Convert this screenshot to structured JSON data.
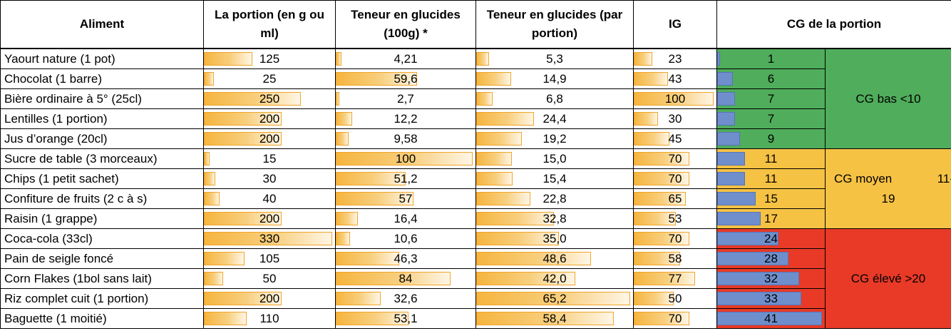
{
  "headers": {
    "aliment": "Aliment",
    "portion": "La portion (en g ou ml)",
    "teneur100": "Teneur en glucides (100g) *",
    "teneurPortion": "Teneur en glucides (par portion)",
    "ig": "IG",
    "cg": "CG de la portion"
  },
  "rows": [
    {
      "aliment": "Yaourt nature (1 pot)",
      "portion": "125",
      "portion_num": 125,
      "g100": "4,21",
      "g100_num": 4.21,
      "gpor": "5,3",
      "gpor_num": 5.3,
      "ig": "23",
      "ig_num": 23,
      "cg": "1",
      "cg_num": 1
    },
    {
      "aliment": "Chocolat (1 barre)",
      "portion": "25",
      "portion_num": 25,
      "g100": "59,6",
      "g100_num": 59.6,
      "gpor": "14,9",
      "gpor_num": 14.9,
      "ig": "43",
      "ig_num": 43,
      "cg": "6",
      "cg_num": 6
    },
    {
      "aliment": "Bière ordinaire à 5° (25cl)",
      "portion": "250",
      "portion_num": 250,
      "g100": "2,7",
      "g100_num": 2.7,
      "gpor": "6,8",
      "gpor_num": 6.8,
      "ig": "100",
      "ig_num": 100,
      "cg": "7",
      "cg_num": 7
    },
    {
      "aliment": "Lentilles (1 portion)",
      "portion": "200",
      "portion_num": 200,
      "g100": "12,2",
      "g100_num": 12.2,
      "gpor": "24,4",
      "gpor_num": 24.4,
      "ig": "30",
      "ig_num": 30,
      "cg": "7",
      "cg_num": 7
    },
    {
      "aliment": "Jus d’orange (20cl)",
      "portion": "200",
      "portion_num": 200,
      "g100": "9,58",
      "g100_num": 9.58,
      "gpor": "19,2",
      "gpor_num": 19.2,
      "ig": "45",
      "ig_num": 45,
      "cg": "9",
      "cg_num": 9
    },
    {
      "aliment": "Sucre de table (3 morceaux)",
      "portion": "15",
      "portion_num": 15,
      "g100": "100",
      "g100_num": 100,
      "gpor": "15,0",
      "gpor_num": 15.0,
      "ig": "70",
      "ig_num": 70,
      "cg": "11",
      "cg_num": 11
    },
    {
      "aliment": "Chips (1 petit sachet)",
      "portion": "30",
      "portion_num": 30,
      "g100": "51,2",
      "g100_num": 51.2,
      "gpor": "15,4",
      "gpor_num": 15.4,
      "ig": "70",
      "ig_num": 70,
      "cg": "11",
      "cg_num": 11
    },
    {
      "aliment": "Confiture de fruits (2 c à s)",
      "portion": "40",
      "portion_num": 40,
      "g100": "57",
      "g100_num": 57,
      "gpor": "22,8",
      "gpor_num": 22.8,
      "ig": "65",
      "ig_num": 65,
      "cg": "15",
      "cg_num": 15
    },
    {
      "aliment": "Raisin (1 grappe)",
      "portion": "200",
      "portion_num": 200,
      "g100": "16,4",
      "g100_num": 16.4,
      "gpor": "32,8",
      "gpor_num": 32.8,
      "ig": "53",
      "ig_num": 53,
      "cg": "17",
      "cg_num": 17
    },
    {
      "aliment": "Coca-cola (33cl)",
      "portion": "330",
      "portion_num": 330,
      "g100": "10,6",
      "g100_num": 10.6,
      "gpor": "35,0",
      "gpor_num": 35.0,
      "ig": "70",
      "ig_num": 70,
      "cg": "24",
      "cg_num": 24
    },
    {
      "aliment": "Pain de seigle foncé",
      "portion": "105",
      "portion_num": 105,
      "g100": "46,3",
      "g100_num": 46.3,
      "gpor": "48,6",
      "gpor_num": 48.6,
      "ig": "58",
      "ig_num": 58,
      "cg": "28",
      "cg_num": 28
    },
    {
      "aliment": "Corn Flakes (1bol sans lait)",
      "portion": "50",
      "portion_num": 50,
      "g100": "84",
      "g100_num": 84,
      "gpor": "42,0",
      "gpor_num": 42.0,
      "ig": "77",
      "ig_num": 77,
      "cg": "32",
      "cg_num": 32
    },
    {
      "aliment": "Riz complet cuit (1 portion)",
      "portion": "200",
      "portion_num": 200,
      "g100": "32,6",
      "g100_num": 32.6,
      "gpor": "65,2",
      "gpor_num": 65.2,
      "ig": "50",
      "ig_num": 50,
      "cg": "33",
      "cg_num": 33
    },
    {
      "aliment": "Baguette (1 moitié)",
      "portion": "110",
      "portion_num": 110,
      "g100": "53,1",
      "g100_num": 53.1,
      "gpor": "58,4",
      "gpor_num": 58.4,
      "ig": "70",
      "ig_num": 70,
      "cg": "41",
      "cg_num": 41
    }
  ],
  "bar_max": {
    "portion": 330,
    "g100": 100,
    "gpor": 65.2,
    "ig": 100,
    "cg": 41
  },
  "categories": {
    "bas": "CG bas <10",
    "moyen_label": "CG moyen",
    "moyen_range_start": "11-",
    "moyen_range_end": "19",
    "eleve": "CG élevé >20"
  },
  "colors": {
    "green": "#4fad5b",
    "orange": "#f6c244",
    "red": "#e83a27",
    "data_bar": "#f6b53f",
    "cg_bar": "#6f8fcc"
  }
}
